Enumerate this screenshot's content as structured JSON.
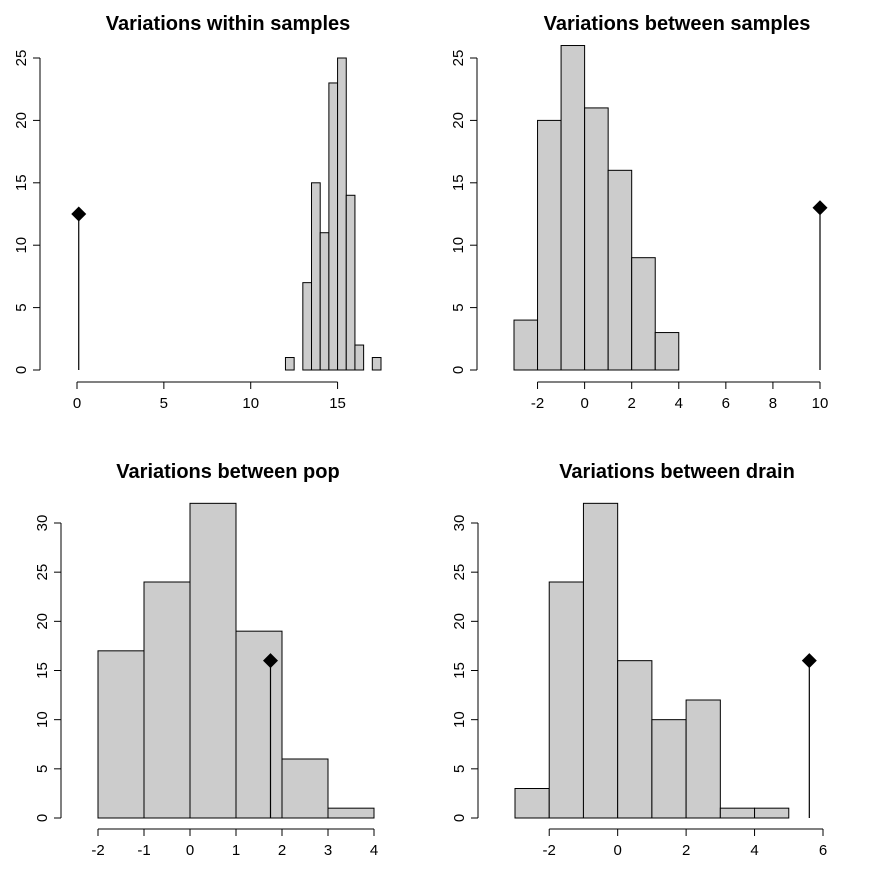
{
  "colors": {
    "bar_fill": "#cccccc",
    "stroke": "#000000",
    "background": "#ffffff"
  },
  "chart_data": [
    {
      "type": "bar",
      "title": "Variations within samples",
      "xlabel": "",
      "ylabel": "",
      "xlim": [
        0,
        17.5
      ],
      "ylim": [
        0,
        25
      ],
      "x_ticks": [
        0,
        5,
        10,
        15
      ],
      "y_ticks": [
        0,
        5,
        10,
        15,
        20,
        25
      ],
      "bins": [
        {
          "x0": 12.0,
          "x1": 12.5,
          "count": 1
        },
        {
          "x0": 12.5,
          "x1": 13.0,
          "count": 0
        },
        {
          "x0": 13.0,
          "x1": 13.5,
          "count": 7
        },
        {
          "x0": 13.5,
          "x1": 14.0,
          "count": 15
        },
        {
          "x0": 14.0,
          "x1": 14.5,
          "count": 11
        },
        {
          "x0": 14.5,
          "x1": 15.0,
          "count": 23
        },
        {
          "x0": 15.0,
          "x1": 15.5,
          "count": 25
        },
        {
          "x0": 15.5,
          "x1": 16.0,
          "count": 14
        },
        {
          "x0": 16.0,
          "x1": 16.5,
          "count": 2
        },
        {
          "x0": 16.5,
          "x1": 17.0,
          "count": 0
        },
        {
          "x0": 17.0,
          "x1": 17.5,
          "count": 1
        }
      ],
      "observed": {
        "x": 0.1,
        "y": 12.5
      }
    },
    {
      "type": "bar",
      "title": "Variations between samples",
      "xlabel": "",
      "ylabel": "",
      "xlim": [
        -3,
        10
      ],
      "ylim": [
        0,
        25
      ],
      "x_ticks": [
        -2,
        0,
        2,
        4,
        6,
        8,
        10
      ],
      "y_ticks": [
        0,
        5,
        10,
        15,
        20,
        25
      ],
      "bins": [
        {
          "x0": -3,
          "x1": -2,
          "count": 4
        },
        {
          "x0": -2,
          "x1": -1,
          "count": 20
        },
        {
          "x0": -1,
          "x1": 0,
          "count": 26
        },
        {
          "x0": 0,
          "x1": 1,
          "count": 21
        },
        {
          "x0": 1,
          "x1": 2,
          "count": 16
        },
        {
          "x0": 2,
          "x1": 3,
          "count": 9
        },
        {
          "x0": 3,
          "x1": 4,
          "count": 3
        }
      ],
      "observed": {
        "x": 10,
        "y": 13
      }
    },
    {
      "type": "bar",
      "title": "Variations between pop",
      "xlabel": "",
      "ylabel": "",
      "xlim": [
        -2,
        4
      ],
      "ylim": [
        0,
        30
      ],
      "x_ticks": [
        -2,
        -1,
        0,
        1,
        2,
        3,
        4
      ],
      "y_ticks": [
        0,
        5,
        10,
        15,
        20,
        25,
        30
      ],
      "bins": [
        {
          "x0": -2,
          "x1": -1,
          "count": 17
        },
        {
          "x0": -1,
          "x1": 0,
          "count": 24
        },
        {
          "x0": 0,
          "x1": 1,
          "count": 32
        },
        {
          "x0": 1,
          "x1": 2,
          "count": 19
        },
        {
          "x0": 2,
          "x1": 3,
          "count": 6
        },
        {
          "x0": 3,
          "x1": 4,
          "count": 1
        }
      ],
      "observed": {
        "x": 1.75,
        "y": 16
      }
    },
    {
      "type": "bar",
      "title": "Variations between drain",
      "xlabel": "",
      "ylabel": "",
      "xlim": [
        -3,
        6
      ],
      "ylim": [
        0,
        30
      ],
      "x_ticks": [
        -2,
        0,
        2,
        4,
        6
      ],
      "y_ticks": [
        0,
        5,
        10,
        15,
        20,
        25,
        30
      ],
      "bins": [
        {
          "x0": -3,
          "x1": -2,
          "count": 3
        },
        {
          "x0": -2,
          "x1": -1,
          "count": 24
        },
        {
          "x0": -1,
          "x1": 0,
          "count": 32
        },
        {
          "x0": 0,
          "x1": 1,
          "count": 16
        },
        {
          "x0": 1,
          "x1": 2,
          "count": 10
        },
        {
          "x0": 2,
          "x1": 3,
          "count": 12
        },
        {
          "x0": 3,
          "x1": 4,
          "count": 1
        },
        {
          "x0": 4,
          "x1": 5,
          "count": 1
        }
      ],
      "observed": {
        "x": 5.6,
        "y": 16
      }
    }
  ]
}
